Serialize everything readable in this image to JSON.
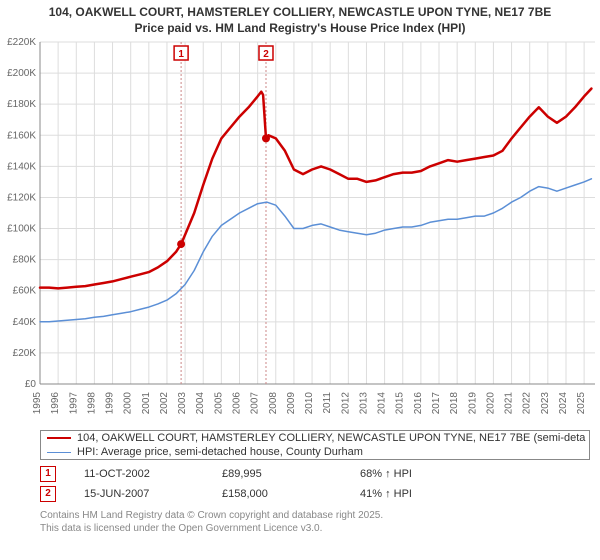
{
  "title_line1": "104, OAKWELL COURT, HAMSTERLEY COLLIERY, NEWCASTLE UPON TYNE, NE17 7BE",
  "title_line2": "Price paid vs. HM Land Registry's House Price Index (HPI)",
  "chart": {
    "type": "line",
    "background_color": "#ffffff",
    "grid_color": "#dddddd",
    "axis_color": "#888888",
    "label_color": "#666666",
    "label_fontsize": 10,
    "x_years": [
      1995,
      1996,
      1997,
      1998,
      1999,
      2000,
      2001,
      2002,
      2003,
      2004,
      2005,
      2006,
      2007,
      2008,
      2009,
      2010,
      2011,
      2012,
      2013,
      2014,
      2015,
      2016,
      2017,
      2018,
      2019,
      2020,
      2021,
      2022,
      2023,
      2024,
      2025
    ],
    "xlim": [
      1995,
      2025.6
    ],
    "ylim": [
      0,
      220000
    ],
    "ytick_step": 20000,
    "ytick_labels": [
      "£0",
      "£20K",
      "£40K",
      "£60K",
      "£80K",
      "£100K",
      "£120K",
      "£140K",
      "£160K",
      "£180K",
      "£200K",
      "£220K"
    ],
    "series": [
      {
        "name": "price_paid",
        "color": "#cc0000",
        "line_width": 2.5,
        "legend_label": "104, OAKWELL COURT, HAMSTERLEY COLLIERY, NEWCASTLE UPON TYNE, NE17 7BE (semi-deta",
        "points": [
          [
            1995.0,
            62000
          ],
          [
            1995.5,
            62000
          ],
          [
            1996.0,
            61500
          ],
          [
            1996.5,
            62000
          ],
          [
            1997.0,
            62500
          ],
          [
            1997.5,
            63000
          ],
          [
            1998.0,
            64000
          ],
          [
            1998.5,
            65000
          ],
          [
            1999.0,
            66000
          ],
          [
            1999.5,
            67500
          ],
          [
            2000.0,
            69000
          ],
          [
            2000.5,
            70500
          ],
          [
            2001.0,
            72000
          ],
          [
            2001.5,
            75000
          ],
          [
            2002.0,
            79000
          ],
          [
            2002.5,
            85000
          ],
          [
            2002.78,
            89995
          ],
          [
            2003.0,
            96000
          ],
          [
            2003.5,
            110000
          ],
          [
            2004.0,
            128000
          ],
          [
            2004.5,
            145000
          ],
          [
            2005.0,
            158000
          ],
          [
            2005.5,
            165000
          ],
          [
            2006.0,
            172000
          ],
          [
            2006.5,
            178000
          ],
          [
            2007.0,
            185000
          ],
          [
            2007.2,
            188000
          ],
          [
            2007.3,
            186000
          ],
          [
            2007.46,
            158000
          ],
          [
            2007.6,
            160000
          ],
          [
            2008.0,
            158000
          ],
          [
            2008.5,
            150000
          ],
          [
            2009.0,
            138000
          ],
          [
            2009.5,
            135000
          ],
          [
            2010.0,
            138000
          ],
          [
            2010.5,
            140000
          ],
          [
            2011.0,
            138000
          ],
          [
            2011.5,
            135000
          ],
          [
            2012.0,
            132000
          ],
          [
            2012.5,
            132000
          ],
          [
            2013.0,
            130000
          ],
          [
            2013.5,
            131000
          ],
          [
            2014.0,
            133000
          ],
          [
            2014.5,
            135000
          ],
          [
            2015.0,
            136000
          ],
          [
            2015.5,
            136000
          ],
          [
            2016.0,
            137000
          ],
          [
            2016.5,
            140000
          ],
          [
            2017.0,
            142000
          ],
          [
            2017.5,
            144000
          ],
          [
            2018.0,
            143000
          ],
          [
            2018.5,
            144000
          ],
          [
            2019.0,
            145000
          ],
          [
            2019.5,
            146000
          ],
          [
            2020.0,
            147000
          ],
          [
            2020.5,
            150000
          ],
          [
            2021.0,
            158000
          ],
          [
            2021.5,
            165000
          ],
          [
            2022.0,
            172000
          ],
          [
            2022.5,
            178000
          ],
          [
            2023.0,
            172000
          ],
          [
            2023.5,
            168000
          ],
          [
            2024.0,
            172000
          ],
          [
            2024.5,
            178000
          ],
          [
            2025.0,
            185000
          ],
          [
            2025.4,
            190000
          ]
        ]
      },
      {
        "name": "hpi",
        "color": "#5b8fd6",
        "line_width": 1.5,
        "legend_label": "HPI: Average price, semi-detached house, County Durham",
        "points": [
          [
            1995.0,
            40000
          ],
          [
            1995.5,
            40000
          ],
          [
            1996.0,
            40500
          ],
          [
            1996.5,
            41000
          ],
          [
            1997.0,
            41500
          ],
          [
            1997.5,
            42000
          ],
          [
            1998.0,
            43000
          ],
          [
            1998.5,
            43500
          ],
          [
            1999.0,
            44500
          ],
          [
            1999.5,
            45500
          ],
          [
            2000.0,
            46500
          ],
          [
            2000.5,
            48000
          ],
          [
            2001.0,
            49500
          ],
          [
            2001.5,
            51500
          ],
          [
            2002.0,
            54000
          ],
          [
            2002.5,
            58000
          ],
          [
            2003.0,
            64000
          ],
          [
            2003.5,
            73000
          ],
          [
            2004.0,
            85000
          ],
          [
            2004.5,
            95000
          ],
          [
            2005.0,
            102000
          ],
          [
            2005.5,
            106000
          ],
          [
            2006.0,
            110000
          ],
          [
            2006.5,
            113000
          ],
          [
            2007.0,
            116000
          ],
          [
            2007.5,
            117000
          ],
          [
            2008.0,
            115000
          ],
          [
            2008.5,
            108000
          ],
          [
            2009.0,
            100000
          ],
          [
            2009.5,
            100000
          ],
          [
            2010.0,
            102000
          ],
          [
            2010.5,
            103000
          ],
          [
            2011.0,
            101000
          ],
          [
            2011.5,
            99000
          ],
          [
            2012.0,
            98000
          ],
          [
            2012.5,
            97000
          ],
          [
            2013.0,
            96000
          ],
          [
            2013.5,
            97000
          ],
          [
            2014.0,
            99000
          ],
          [
            2014.5,
            100000
          ],
          [
            2015.0,
            101000
          ],
          [
            2015.5,
            101000
          ],
          [
            2016.0,
            102000
          ],
          [
            2016.5,
            104000
          ],
          [
            2017.0,
            105000
          ],
          [
            2017.5,
            106000
          ],
          [
            2018.0,
            106000
          ],
          [
            2018.5,
            107000
          ],
          [
            2019.0,
            108000
          ],
          [
            2019.5,
            108000
          ],
          [
            2020.0,
            110000
          ],
          [
            2020.5,
            113000
          ],
          [
            2021.0,
            117000
          ],
          [
            2021.5,
            120000
          ],
          [
            2022.0,
            124000
          ],
          [
            2022.5,
            127000
          ],
          [
            2023.0,
            126000
          ],
          [
            2023.5,
            124000
          ],
          [
            2024.0,
            126000
          ],
          [
            2024.5,
            128000
          ],
          [
            2025.0,
            130000
          ],
          [
            2025.4,
            132000
          ]
        ]
      }
    ],
    "sale_markers": [
      {
        "n": "1",
        "x": 2002.78,
        "y": 89995
      },
      {
        "n": "2",
        "x": 2007.46,
        "y": 158000
      }
    ]
  },
  "legend_border_color": "#888888",
  "marker_rows": [
    {
      "n": "1",
      "date": "11-OCT-2002",
      "price": "£89,995",
      "delta": "68% ↑ HPI"
    },
    {
      "n": "2",
      "date": "15-JUN-2007",
      "price": "£158,000",
      "delta": "41% ↑ HPI"
    }
  ],
  "footer_line1": "Contains HM Land Registry data © Crown copyright and database right 2025.",
  "footer_line2": "This data is licensed under the Open Government Licence v3.0."
}
